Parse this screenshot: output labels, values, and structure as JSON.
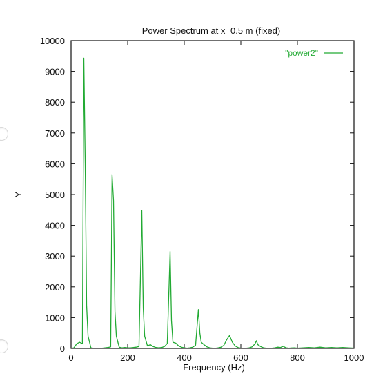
{
  "chart_data": {
    "type": "line",
    "title": "Power Spectrum at x=0.5 m (fixed)",
    "xlabel": "Frequency (Hz)",
    "ylabel": "Y",
    "xlim": [
      0,
      1000
    ],
    "ylim": [
      0,
      10000
    ],
    "x_ticks": [
      0,
      200,
      400,
      600,
      800,
      1000
    ],
    "y_ticks": [
      0,
      1000,
      2000,
      3000,
      4000,
      5000,
      6000,
      7000,
      8000,
      9000,
      10000
    ],
    "grid": false,
    "legend_position": "top-right",
    "series": [
      {
        "name": "\"power2\"",
        "color": "#22aa33",
        "x": [
          0,
          10,
          20,
          30,
          40,
          45,
          50,
          55,
          60,
          70,
          80,
          90,
          100,
          110,
          120,
          130,
          140,
          145,
          150,
          155,
          160,
          170,
          180,
          190,
          200,
          210,
          220,
          230,
          240,
          250,
          255,
          260,
          270,
          280,
          290,
          300,
          310,
          320,
          330,
          340,
          350,
          355,
          360,
          370,
          380,
          390,
          400,
          410,
          420,
          430,
          440,
          450,
          455,
          460,
          470,
          480,
          490,
          500,
          510,
          520,
          530,
          540,
          550,
          560,
          570,
          580,
          590,
          600,
          610,
          620,
          630,
          640,
          650,
          655,
          660,
          670,
          680,
          690,
          700,
          710,
          720,
          730,
          740,
          750,
          755,
          760,
          770,
          780,
          790,
          800,
          820,
          840,
          860,
          880,
          900,
          920,
          940,
          960,
          980,
          1000
        ],
        "y": [
          0,
          20,
          150,
          200,
          150,
          9430,
          6000,
          1400,
          400,
          20,
          5,
          5,
          5,
          10,
          20,
          30,
          50,
          5650,
          4800,
          1200,
          400,
          40,
          20,
          30,
          20,
          20,
          30,
          40,
          60,
          4480,
          1300,
          400,
          80,
          120,
          60,
          30,
          20,
          30,
          60,
          160,
          3150,
          900,
          200,
          170,
          80,
          40,
          20,
          10,
          20,
          40,
          100,
          1260,
          500,
          200,
          120,
          50,
          20,
          10,
          5,
          20,
          40,
          100,
          280,
          420,
          200,
          80,
          30,
          10,
          5,
          10,
          20,
          50,
          150,
          250,
          120,
          60,
          20,
          10,
          5,
          10,
          20,
          40,
          30,
          70,
          40,
          20,
          10,
          15,
          20,
          10,
          20,
          30,
          20,
          40,
          20,
          30,
          20,
          30,
          20,
          10
        ]
      }
    ]
  }
}
